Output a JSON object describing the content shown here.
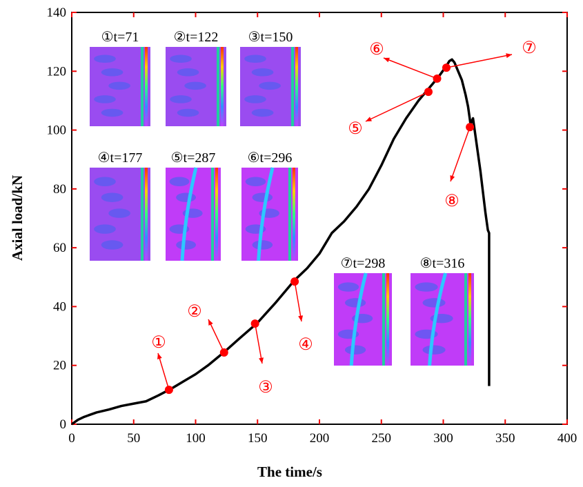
{
  "chart_data": {
    "type": "line",
    "xlabel": "The time/s",
    "ylabel": "Axial load/kN",
    "x": [
      0,
      5,
      10,
      20,
      30,
      40,
      50,
      60,
      70,
      80,
      90,
      100,
      110,
      123,
      135,
      150,
      165,
      180,
      190,
      200,
      210,
      220,
      230,
      240,
      250,
      260,
      270,
      280,
      287,
      296,
      302,
      305,
      307,
      309,
      312,
      315,
      318,
      320,
      322,
      323,
      324,
      326,
      330,
      334,
      336,
      337,
      337
    ],
    "values": [
      0,
      1.5,
      2.5,
      4,
      5,
      6.2,
      7,
      7.8,
      9.8,
      12,
      14.5,
      17,
      20,
      24.5,
      29,
      34.5,
      41.5,
      49,
      53,
      58,
      65,
      69,
      74,
      80,
      88,
      97,
      104,
      110,
      113.5,
      118,
      121.5,
      123.5,
      124,
      123,
      120,
      117,
      112,
      108,
      102,
      103,
      104,
      98,
      86,
      72,
      66,
      65,
      13
    ],
    "color": "#000000",
    "xlim": [
      0,
      400
    ],
    "xticks": [
      0,
      50,
      100,
      150,
      200,
      250,
      300,
      350,
      400
    ],
    "ylim": [
      0,
      140
    ],
    "yticks": [
      0,
      20,
      40,
      60,
      80,
      100,
      120,
      140
    ],
    "points": {
      "x": [
        78.5,
        123,
        148,
        180,
        288,
        295,
        302.5,
        321.5
      ],
      "y": [
        11.7,
        24.4,
        34.2,
        48.5,
        113,
        117.5,
        121.2,
        101
      ],
      "labels": [
        "①",
        "②",
        "③",
        "④",
        "⑤",
        "⑥",
        "⑦",
        "⑧"
      ],
      "color": "#ff0000"
    },
    "insets": [
      "①t=71",
      "②t=122",
      "③t=150",
      "④t=177",
      "⑤t=287",
      "⑥t=296",
      "⑦t=298",
      "⑧t=316"
    ]
  }
}
